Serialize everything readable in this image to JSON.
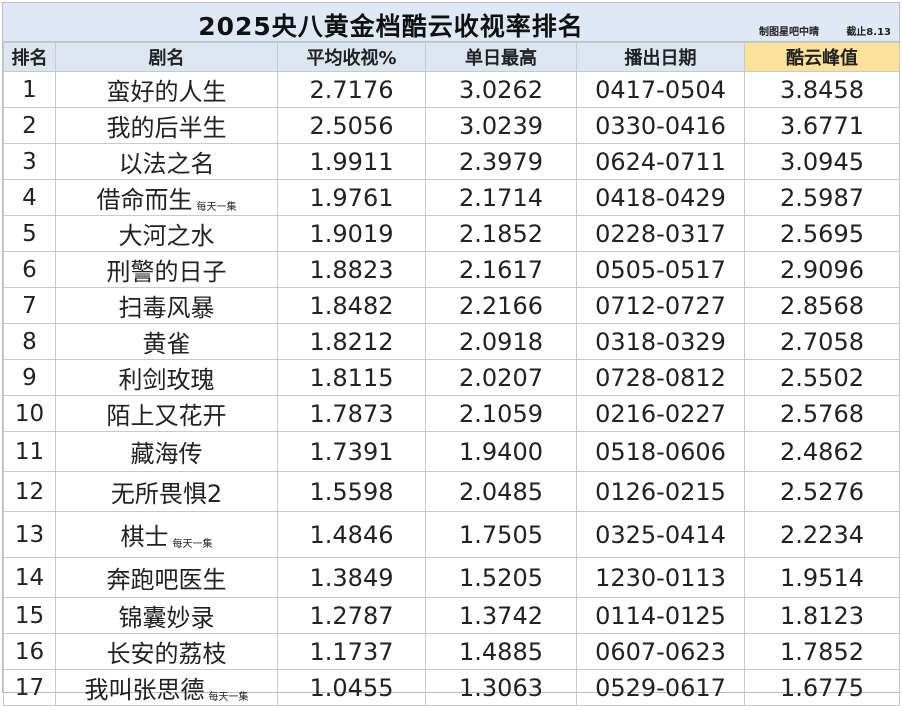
{
  "title": "2025央八黄金档酷云收视率排名",
  "credit_maker": "制图星吧中晴",
  "credit_cutoff": "截止8.13",
  "headers": {
    "rank": "排名",
    "name": "剧名",
    "avg": "平均收视%",
    "daily_max": "单日最高",
    "air_dates": "播出日期",
    "peak": "酷云峰值"
  },
  "rows": [
    {
      "rank": "1",
      "name": "蛮好的人生",
      "note": "",
      "avg": "2.7176",
      "daily_max": "3.0262",
      "air_dates": "0417-0504",
      "peak": "3.8458"
    },
    {
      "rank": "2",
      "name": "我的后半生",
      "note": "",
      "avg": "2.5056",
      "daily_max": "3.0239",
      "air_dates": "0330-0416",
      "peak": "3.6771"
    },
    {
      "rank": "3",
      "name": "以法之名",
      "note": "",
      "avg": "1.9911",
      "daily_max": "2.3979",
      "air_dates": "0624-0711",
      "peak": "3.0945"
    },
    {
      "rank": "4",
      "name": "借命而生",
      "note": "每天一集",
      "avg": "1.9761",
      "daily_max": "2.1714",
      "air_dates": "0418-0429",
      "peak": "2.5987"
    },
    {
      "rank": "5",
      "name": "大河之水",
      "note": "",
      "avg": "1.9019",
      "daily_max": "2.1852",
      "air_dates": "0228-0317",
      "peak": "2.5695"
    },
    {
      "rank": "6",
      "name": "刑警的日子",
      "note": "",
      "avg": "1.8823",
      "daily_max": "2.1617",
      "air_dates": "0505-0517",
      "peak": "2.9096"
    },
    {
      "rank": "7",
      "name": "扫毒风暴",
      "note": "",
      "avg": "1.8482",
      "daily_max": "2.2166",
      "air_dates": "0712-0727",
      "peak": "2.8568"
    },
    {
      "rank": "8",
      "name": "黄雀",
      "note": "",
      "avg": "1.8212",
      "daily_max": "2.0918",
      "air_dates": "0318-0329",
      "peak": "2.7058"
    },
    {
      "rank": "9",
      "name": "利剑玫瑰",
      "note": "",
      "avg": "1.8115",
      "daily_max": "2.0207",
      "air_dates": "0728-0812",
      "peak": "2.5502"
    },
    {
      "rank": "10",
      "name": "陌上又花开",
      "note": "",
      "avg": "1.7873",
      "daily_max": "2.1059",
      "air_dates": "0216-0227",
      "peak": "2.5768"
    },
    {
      "rank": "11",
      "name": "藏海传",
      "note": "",
      "avg": "1.7391",
      "daily_max": "1.9400",
      "air_dates": "0518-0606",
      "peak": "2.4862"
    },
    {
      "rank": "12",
      "name": "无所畏惧2",
      "note": "",
      "avg": "1.5598",
      "daily_max": "2.0485",
      "air_dates": "0126-0215",
      "peak": "2.5276"
    },
    {
      "rank": "13",
      "name": "棋士",
      "note": "每天一集",
      "avg": "1.4846",
      "daily_max": "1.7505",
      "air_dates": "0325-0414",
      "peak": "2.2234"
    },
    {
      "rank": "14",
      "name": "奔跑吧医生",
      "note": "",
      "avg": "1.3849",
      "daily_max": "1.5205",
      "air_dates": "1230-0113",
      "peak": "1.9514"
    },
    {
      "rank": "15",
      "name": "锦囊妙录",
      "note": "",
      "avg": "1.2787",
      "daily_max": "1.3742",
      "air_dates": "0114-0125",
      "peak": "1.8123"
    },
    {
      "rank": "16",
      "name": "长安的荔枝",
      "note": "",
      "avg": "1.1737",
      "daily_max": "1.4885",
      "air_dates": "0607-0623",
      "peak": "1.7852"
    },
    {
      "rank": "17",
      "name": "我叫张思德",
      "note": "每天一集",
      "avg": "1.0455",
      "daily_max": "1.3063",
      "air_dates": "0529-0617",
      "peak": "1.6775"
    }
  ]
}
